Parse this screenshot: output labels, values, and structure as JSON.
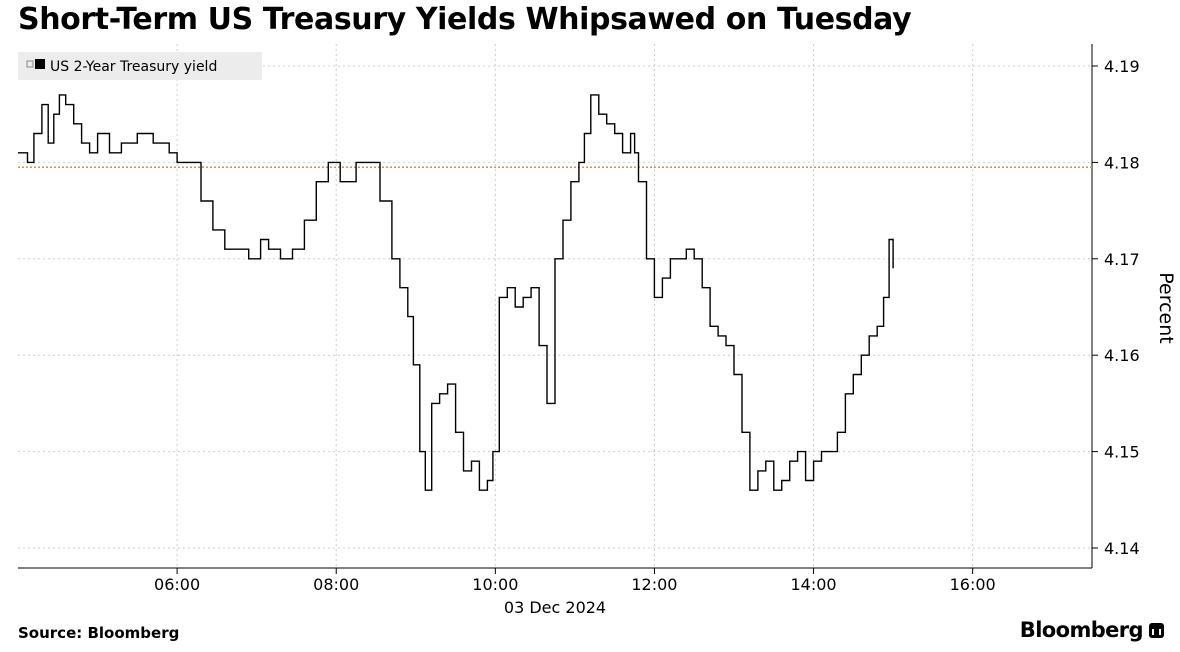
{
  "title": "Short-Term US Treasury Yields Whipsawed on Tuesday",
  "source": "Source: Bloomberg",
  "brand": "Bloomberg",
  "chart_data": {
    "type": "line",
    "xlabel": "03 Dec 2024",
    "ylabel": "Percent",
    "legend": {
      "label": "US 2-Year Treasury yield",
      "position": "top-left"
    },
    "grid": true,
    "xlim": [
      4.0,
      17.5
    ],
    "ylim": [
      4.138,
      4.192
    ],
    "x_tick_labels": [
      "06:00",
      "08:00",
      "10:00",
      "12:00",
      "14:00",
      "16:00"
    ],
    "x_ticks": [
      6,
      8,
      10,
      12,
      14,
      16
    ],
    "y_tick_labels": [
      "4.14",
      "4.15",
      "4.16",
      "4.17",
      "4.18",
      "4.19"
    ],
    "y_ticks": [
      4.14,
      4.15,
      4.16,
      4.17,
      4.18,
      4.19
    ],
    "reference_line": {
      "y": 4.1795,
      "color": "#f28a1e"
    },
    "colors": {
      "line": "#000000",
      "reference": "#f28a1e",
      "grid": "#cccccc"
    },
    "series": [
      {
        "name": "US 2-Year Treasury yield",
        "x": [
          4.0,
          4.12,
          4.2,
          4.3,
          4.38,
          4.45,
          4.52,
          4.6,
          4.7,
          4.8,
          4.9,
          5.0,
          5.15,
          5.3,
          5.5,
          5.7,
          5.9,
          6.0,
          6.15,
          6.3,
          6.45,
          6.6,
          6.75,
          6.9,
          7.05,
          7.15,
          7.3,
          7.45,
          7.6,
          7.75,
          7.9,
          8.05,
          8.15,
          8.25,
          8.4,
          8.55,
          8.7,
          8.8,
          8.9,
          8.97,
          9.05,
          9.12,
          9.2,
          9.3,
          9.4,
          9.5,
          9.6,
          9.7,
          9.8,
          9.9,
          9.97,
          10.05,
          10.15,
          10.25,
          10.35,
          10.45,
          10.55,
          10.65,
          10.75,
          10.85,
          10.95,
          11.05,
          11.12,
          11.2,
          11.3,
          11.4,
          11.5,
          11.6,
          11.7,
          11.75,
          11.8,
          11.9,
          12.0,
          12.1,
          12.2,
          12.3,
          12.4,
          12.5,
          12.6,
          12.7,
          12.8,
          12.9,
          13.0,
          13.1,
          13.2,
          13.3,
          13.4,
          13.5,
          13.6,
          13.7,
          13.8,
          13.9,
          14.0,
          14.1,
          14.2,
          14.3,
          14.4,
          14.5,
          14.6,
          14.7,
          14.8,
          14.88,
          14.95,
          15.0
        ],
        "values": [
          4.181,
          4.18,
          4.183,
          4.186,
          4.182,
          4.185,
          4.187,
          4.186,
          4.184,
          4.182,
          4.181,
          4.183,
          4.181,
          4.182,
          4.183,
          4.182,
          4.181,
          4.18,
          4.18,
          4.176,
          4.173,
          4.171,
          4.171,
          4.17,
          4.172,
          4.171,
          4.17,
          4.171,
          4.174,
          4.178,
          4.18,
          4.178,
          4.178,
          4.18,
          4.18,
          4.176,
          4.17,
          4.167,
          4.164,
          4.159,
          4.15,
          4.146,
          4.155,
          4.156,
          4.157,
          4.152,
          4.148,
          4.149,
          4.146,
          4.147,
          4.15,
          4.166,
          4.167,
          4.165,
          4.166,
          4.167,
          4.161,
          4.155,
          4.17,
          4.174,
          4.178,
          4.18,
          4.183,
          4.187,
          4.185,
          4.184,
          4.183,
          4.181,
          4.183,
          4.181,
          4.178,
          4.17,
          4.166,
          4.168,
          4.17,
          4.17,
          4.171,
          4.17,
          4.167,
          4.163,
          4.162,
          4.161,
          4.158,
          4.152,
          4.146,
          4.148,
          4.149,
          4.146,
          4.147,
          4.149,
          4.15,
          4.147,
          4.149,
          4.15,
          4.15,
          4.152,
          4.156,
          4.158,
          4.16,
          4.162,
          4.163,
          4.166,
          4.172,
          4.169
        ]
      }
    ]
  }
}
